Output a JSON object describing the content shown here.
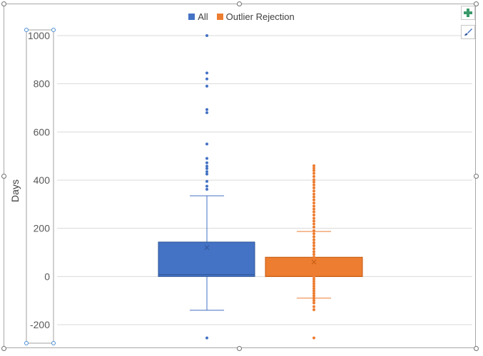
{
  "chart_data": {
    "type": "boxplot",
    "title": "",
    "ylabel": "Days",
    "xlabel": "",
    "ylim": [
      -200,
      1000
    ],
    "yticks": [
      1000,
      800,
      600,
      400,
      200,
      0,
      -200
    ],
    "grid": true,
    "legend_position": "top",
    "series": [
      {
        "name": "All",
        "color": "#4472C4",
        "whisker_low": -140,
        "q1": 0,
        "median": 8,
        "q3": 143,
        "whisker_high": 335,
        "mean": 120,
        "outliers": [
          1000,
          845,
          820,
          790,
          693,
          680,
          550,
          490,
          472,
          458,
          448,
          435,
          425,
          395,
          375,
          362,
          -255
        ]
      },
      {
        "name": "Outlier Rejection",
        "color": "#ED7D31",
        "whisker_low": -90,
        "q1": 0,
        "median": 0,
        "q3": 80,
        "whisker_high": 187,
        "mean": 60,
        "points": [
          460,
          450,
          440,
          428,
          415,
          402,
          392,
          380,
          368,
          355,
          342,
          330,
          318,
          305,
          292,
          280,
          268,
          255,
          242,
          230,
          218,
          205,
          190,
          178,
          165,
          152,
          140,
          128,
          115,
          103,
          92,
          80,
          70,
          60,
          50,
          40,
          30,
          20,
          10,
          0,
          -10,
          -20,
          -30,
          -40,
          -50,
          -60,
          -70,
          -80,
          -90,
          -100,
          -110,
          -125,
          -138,
          -255
        ]
      }
    ]
  },
  "legend": {
    "all": {
      "label": "All",
      "color": "#4472C4"
    },
    "outlier": {
      "label": "Outlier Rejection",
      "color": "#ED7D31"
    }
  },
  "side_buttons": {
    "add": "plus-icon",
    "style": "paintbrush-icon"
  }
}
